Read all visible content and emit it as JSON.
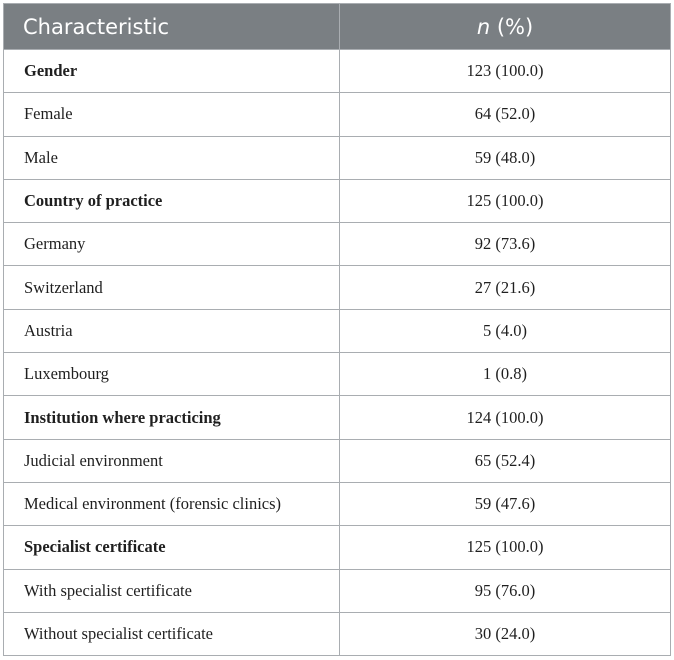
{
  "table": {
    "headers": {
      "characteristic": "Characteristic",
      "n_italic": "n",
      "pct": " (%)"
    },
    "rows": [
      {
        "label": "Gender",
        "value": "123 (100.0)",
        "section": true
      },
      {
        "label": "Female",
        "value": "64 (52.0)",
        "section": false
      },
      {
        "label": "Male",
        "value": "59 (48.0)",
        "section": false
      },
      {
        "label": "Country of practice",
        "value": "125 (100.0)",
        "section": true
      },
      {
        "label": "Germany",
        "value": "92 (73.6)",
        "section": false
      },
      {
        "label": "Switzerland",
        "value": "27 (21.6)",
        "section": false
      },
      {
        "label": "Austria",
        "value": "5 (4.0)",
        "section": false
      },
      {
        "label": "Luxembourg",
        "value": "1 (0.8)",
        "section": false
      },
      {
        "label": "Institution where practicing",
        "value": "124 (100.0)",
        "section": true
      },
      {
        "label": "Judicial environment",
        "value": "65 (52.4)",
        "section": false
      },
      {
        "label": "Medical environment (forensic clinics)",
        "value": "59 (47.6)",
        "section": false
      },
      {
        "label": "Specialist certificate",
        "value": "125 (100.0)",
        "section": true
      },
      {
        "label": "With specialist certificate",
        "value": "95 (76.0)",
        "section": false
      },
      {
        "label": "Without specialist certificate",
        "value": "30 (24.0)",
        "section": false
      }
    ]
  }
}
